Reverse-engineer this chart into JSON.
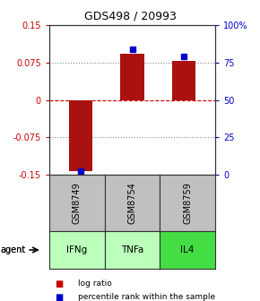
{
  "title": "GDS498 / 20993",
  "samples": [
    "GSM8749",
    "GSM8754",
    "GSM8759"
  ],
  "agents": [
    "IFNg",
    "TNFa",
    "IL4"
  ],
  "log_ratios": [
    -0.143,
    0.092,
    0.078
  ],
  "percentile_ranks": [
    2.5,
    84,
    79
  ],
  "ylim_left": [
    -0.15,
    0.15
  ],
  "ylim_right": [
    0,
    100
  ],
  "yticks_left": [
    -0.15,
    -0.075,
    0,
    0.075,
    0.15
  ],
  "yticks_right": [
    0,
    25,
    50,
    75,
    100
  ],
  "ytick_labels_left": [
    "-0.15",
    "-0.075",
    "0",
    "0.075",
    "0.15"
  ],
  "ytick_labels_right": [
    "0",
    "25",
    "50",
    "75",
    "100%"
  ],
  "bar_width": 0.45,
  "bar_color": "#aa1111",
  "dot_color": "#0000cc",
  "sample_bg": "#c0c0c0",
  "agent_colors": [
    "#bbffbb",
    "#bbffbb",
    "#44dd44"
  ],
  "legend_bar_color": "#cc0000",
  "legend_dot_color": "#0000cc",
  "left_color": "#cc0000",
  "right_color": "#0000cc"
}
